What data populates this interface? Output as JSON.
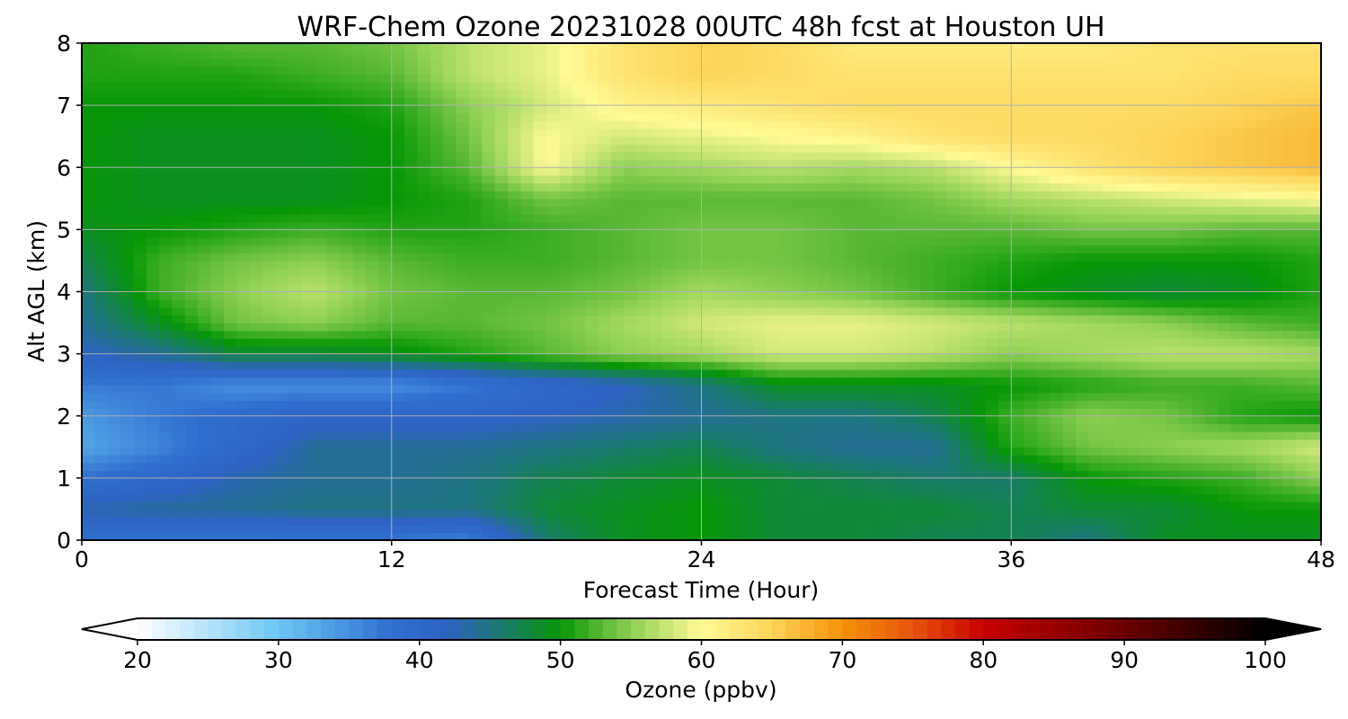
{
  "chart_data": {
    "type": "heatmap",
    "title": "WRF-Chem Ozone  20231028 00UTC 48h fcst at Houston UH",
    "xlabel": "Forecast Time (Hour)",
    "ylabel": "Alt AGL (km)",
    "xlim": [
      0,
      48
    ],
    "ylim": [
      0,
      8
    ],
    "xticks": [
      0,
      12,
      24,
      36,
      48
    ],
    "yticks": [
      0,
      1,
      2,
      3,
      4,
      5,
      6,
      7,
      8
    ],
    "grid": true,
    "x_hours": [
      0,
      3,
      6,
      9,
      12,
      15,
      18,
      21,
      24,
      27,
      30,
      33,
      36,
      39,
      42,
      45,
      48
    ],
    "y_km": [
      0,
      0.5,
      1,
      1.5,
      2,
      2.5,
      3,
      3.5,
      4,
      4.5,
      5,
      5.5,
      6,
      6.5,
      7,
      7.5,
      8
    ],
    "z_ozone_ppbv": [
      [
        38,
        37,
        37,
        37,
        37,
        36,
        46,
        49,
        50,
        48,
        48,
        47,
        47,
        45,
        49,
        49,
        49
      ],
      [
        43,
        44,
        44,
        45,
        45,
        45,
        48,
        49,
        50,
        48,
        48,
        48,
        47,
        48,
        48,
        50,
        50
      ],
      [
        38,
        40,
        43,
        44,
        44,
        45,
        47,
        48,
        49,
        48,
        47,
        46,
        46,
        50,
        51,
        52,
        55
      ],
      [
        33,
        36,
        40,
        44,
        44,
        44,
        45,
        46,
        47,
        45,
        44,
        44,
        51,
        54,
        55,
        56,
        58
      ],
      [
        34,
        37,
        39,
        41,
        41,
        41,
        42,
        43,
        44,
        45,
        45,
        47,
        52,
        55,
        54,
        51,
        50
      ],
      [
        37,
        37,
        35,
        35,
        35,
        37,
        40,
        42,
        45,
        49,
        49,
        49,
        50,
        51,
        52,
        52,
        53
      ],
      [
        42,
        44,
        48,
        48,
        49,
        51,
        53,
        55,
        56,
        58,
        58,
        57,
        55,
        56,
        57,
        57,
        56
      ],
      [
        44,
        49,
        54,
        55,
        53,
        53,
        54,
        56,
        58,
        59,
        59,
        58,
        57,
        56,
        55,
        53,
        52
      ],
      [
        45,
        52,
        55,
        57,
        54,
        53,
        53,
        54,
        56,
        55,
        54,
        52,
        50,
        49,
        48,
        49,
        51
      ],
      [
        47,
        52,
        54,
        55,
        53,
        52,
        52,
        53,
        54,
        54,
        53,
        52,
        51,
        50,
        50,
        50,
        51
      ],
      [
        49,
        50,
        51,
        52,
        51,
        51,
        52,
        53,
        54,
        54,
        53,
        53,
        53,
        54,
        54,
        53,
        53
      ],
      [
        50,
        49,
        49,
        49,
        50,
        51,
        54,
        53,
        53,
        53,
        53,
        54,
        56,
        57,
        58,
        59,
        60
      ],
      [
        50,
        49,
        49,
        49,
        50,
        53,
        60,
        55,
        56,
        57,
        56,
        57,
        60,
        63,
        65,
        66,
        67
      ],
      [
        50,
        49,
        49,
        49,
        50,
        54,
        60,
        58,
        59,
        60,
        61,
        63,
        64,
        64,
        65,
        66,
        67
      ],
      [
        50,
        50,
        50,
        50,
        51,
        55,
        58,
        61,
        62,
        63,
        64,
        64,
        64,
        64,
        64,
        65,
        66
      ],
      [
        51,
        51,
        51,
        52,
        53,
        57,
        59,
        63,
        65,
        64,
        63,
        63,
        63,
        63,
        63,
        64,
        64
      ],
      [
        51,
        52,
        53,
        53,
        54,
        57,
        59,
        63,
        65,
        64,
        62,
        62,
        62,
        62,
        63,
        63,
        63
      ]
    ],
    "colorbar": {
      "label": "Ozone  (ppbv)",
      "range": [
        20,
        100
      ],
      "ticks": [
        20,
        30,
        40,
        50,
        60,
        70,
        80,
        90,
        100
      ],
      "extend": "both",
      "orientation": "horizontal",
      "colors": {
        "20": "#ffffff",
        "30": "#6cc6f4",
        "38": "#2f6fcf",
        "42": "#2e63c2",
        "46": "#1a7a6a",
        "50": "#079607",
        "55": "#8fcf55",
        "60": "#fffa96",
        "65": "#fcd458",
        "70": "#f5920a",
        "75": "#e7540c",
        "80": "#c80000",
        "90": "#6a0000",
        "100": "#000000"
      }
    }
  }
}
